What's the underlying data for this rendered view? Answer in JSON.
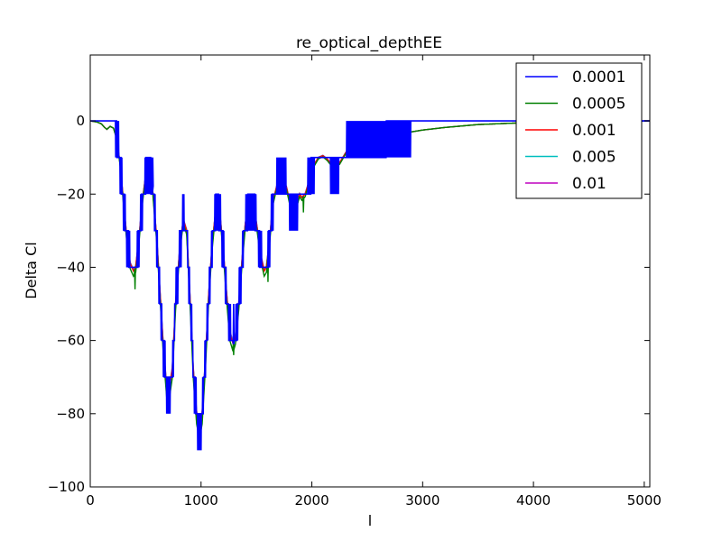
{
  "chart_data": {
    "type": "line",
    "title": "re_optical_depthEE",
    "xlabel": "l",
    "ylabel": "Delta Cl",
    "xlim": [
      0,
      5050
    ],
    "ylim": [
      -100,
      18
    ],
    "grid": false,
    "legend": "top-right",
    "x_ticks": [
      0,
      1000,
      2000,
      3000,
      4000,
      5000
    ],
    "x_tick_labels": [
      "0",
      "1000",
      "2000",
      "3000",
      "4000",
      "5000"
    ],
    "y_ticks": [
      0,
      -20,
      -40,
      -60,
      -80,
      -100
    ],
    "y_tick_labels": [
      "0",
      "−20",
      "−40",
      "−60",
      "−80",
      "−100"
    ],
    "base_curve": {
      "x": [
        0,
        60,
        100,
        130,
        150,
        180,
        210,
        240,
        270,
        300,
        330,
        360,
        390,
        410,
        440,
        470,
        500,
        530,
        555,
        580,
        600,
        630,
        660,
        690,
        710,
        740,
        770,
        810,
        840,
        870,
        900,
        930,
        960,
        985,
        1010,
        1040,
        1070,
        1100,
        1130,
        1150,
        1175,
        1200,
        1230,
        1260,
        1290,
        1310,
        1340,
        1370,
        1400,
        1430,
        1460,
        1480,
        1510,
        1540,
        1570,
        1590,
        1620,
        1650,
        1690,
        1730,
        1770,
        1800,
        1830,
        1860,
        1890,
        1910,
        1940,
        1980,
        2020,
        2060,
        2100,
        2140,
        2180,
        2220,
        2250,
        2290,
        2320,
        2360,
        2400,
        2450,
        2500,
        2560,
        2620,
        2700,
        2760,
        2800,
        2900,
        3000,
        3200,
        3500,
        4000,
        4500,
        5050
      ],
      "y": [
        0,
        -0.3,
        -0.8,
        -1.8,
        -2.3,
        -1.5,
        -2.0,
        -5.0,
        -12.0,
        -22.0,
        -32.0,
        -39.0,
        -41.0,
        -40.0,
        -32.0,
        -22.0,
        -15.0,
        -13.5,
        -16.0,
        -25.0,
        -32.0,
        -47.0,
        -62.0,
        -73.0,
        -74.0,
        -68.0,
        -50.0,
        -34.0,
        -27.0,
        -30.0,
        -48.0,
        -68.0,
        -80.0,
        -84.0,
        -80.0,
        -65.0,
        -47.0,
        -34.0,
        -25.0,
        -24.0,
        -27.0,
        -35.0,
        -47.0,
        -58.0,
        -61.0,
        -59.0,
        -50.0,
        -38.0,
        -28.0,
        -23.0,
        -22.0,
        -24.0,
        -30.0,
        -37.0,
        -41.0,
        -40.0,
        -32.0,
        -22.0,
        -17.0,
        -16.0,
        -18.0,
        -22.0,
        -24.0,
        -23.0,
        -20.0,
        -21.0,
        -20.0,
        -16.0,
        -12.0,
        -10.0,
        -9.5,
        -10.5,
        -12.0,
        -12.0,
        -11.5,
        -9.5,
        -8.0,
        -7.0,
        -6.5,
        -5.8,
        -5.5,
        -5.5,
        -5.3,
        -4.8,
        -4.0,
        -3.5,
        -3.0,
        -2.5,
        -1.8,
        -1.0,
        -0.4,
        -0.15,
        0.0
      ]
    },
    "series": [
      {
        "name": "0.0001",
        "color": "#0000ff",
        "quantize": 10,
        "spikes": [
          [
            560,
            -10.0
          ],
          [
            985,
            -90.0
          ],
          [
            1290,
            -50.0
          ]
        ]
      },
      {
        "name": "0.0005",
        "color": "#008000",
        "quantize": 0,
        "dip_scale": 1.035,
        "spikes": [
          [
            400,
            -46.0
          ],
          [
            1290,
            -64.0
          ],
          [
            1600,
            -44.0
          ],
          [
            1920,
            -25.0
          ]
        ]
      },
      {
        "name": "0.001",
        "color": "#ff0000",
        "quantize": 0,
        "dip_scale": 1.0,
        "spikes": []
      },
      {
        "name": "0.005",
        "color": "#00bfbf",
        "quantize": 0,
        "dip_scale": 0.995,
        "spikes": []
      },
      {
        "name": "0.01",
        "color": "#bf00bf",
        "quantize": 0,
        "dip_scale": 0.99,
        "spikes": []
      }
    ]
  }
}
